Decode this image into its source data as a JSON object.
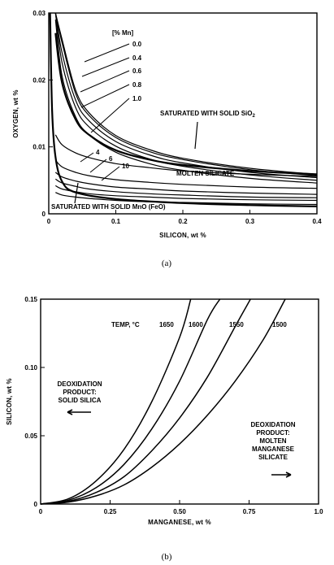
{
  "chart_data": [
    {
      "id": "a",
      "type": "line",
      "caption": "(a)",
      "xlabel": "SILICON, wt %",
      "ylabel": "OXYGEN, wt %",
      "xlim": [
        0,
        0.4
      ],
      "ylim": [
        0,
        0.03
      ],
      "x_ticks": [
        "0",
        "0.1",
        "0.2",
        "0.3",
        "0.4"
      ],
      "y_ticks": [
        "0",
        "0.01",
        "0.02",
        "0.03"
      ],
      "legend_title": "[% Mn]",
      "series": [
        {
          "name": "0.0",
          "group": "sio2",
          "x": [
            0.01,
            0.02,
            0.04,
            0.06,
            0.1,
            0.15,
            0.2,
            0.3,
            0.4
          ],
          "y": [
            0.037,
            0.026,
            0.0185,
            0.0151,
            0.0117,
            0.0096,
            0.0083,
            0.0068,
            0.0059
          ]
        },
        {
          "name": "0.4",
          "group": "sio2",
          "x": [
            0.01,
            0.02,
            0.04,
            0.06,
            0.1,
            0.15,
            0.2,
            0.3,
            0.4
          ],
          "y": [
            0.036,
            0.0255,
            0.018,
            0.0147,
            0.0114,
            0.0093,
            0.0081,
            0.0066,
            0.0057
          ]
        },
        {
          "name": "0.6",
          "group": "sio2",
          "x": [
            0.01,
            0.02,
            0.04,
            0.06,
            0.1,
            0.15,
            0.2,
            0.3,
            0.4
          ],
          "y": [
            0.0345,
            0.024,
            0.017,
            0.0139,
            0.0108,
            0.0088,
            0.0076,
            0.0062,
            0.0054
          ]
        },
        {
          "name": "0.8",
          "group": "sio2",
          "x": [
            0.01,
            0.02,
            0.04,
            0.06,
            0.1,
            0.15,
            0.2,
            0.3,
            0.4
          ],
          "y": [
            0.032,
            0.0225,
            0.0159,
            0.013,
            0.0101,
            0.0082,
            0.0071,
            0.0058,
            0.005
          ]
        },
        {
          "name": "1.0",
          "group": "sio2",
          "x": [
            0.01,
            0.02,
            0.04,
            0.06,
            0.1,
            0.15,
            0.2,
            0.3,
            0.4
          ],
          "y": [
            0.029,
            0.0205,
            0.0145,
            0.0118,
            0.0092,
            0.0075,
            0.0065,
            0.0053,
            0.0046
          ]
        },
        {
          "name": "4",
          "group": "silicate",
          "x": [
            0.01,
            0.02,
            0.04,
            0.06,
            0.1,
            0.15,
            0.2,
            0.3,
            0.4
          ],
          "y": [
            0.0118,
            0.0103,
            0.0091,
            0.0084,
            0.0075,
            0.0069,
            0.0064,
            0.0059,
            0.0056
          ]
        },
        {
          "name": "6",
          "group": "silicate",
          "x": [
            0.01,
            0.02,
            0.04,
            0.06,
            0.1,
            0.15,
            0.2,
            0.3,
            0.4
          ],
          "y": [
            0.008,
            0.007,
            0.0062,
            0.0057,
            0.0051,
            0.0047,
            0.0044,
            0.004,
            0.0038
          ]
        },
        {
          "name": "10",
          "group": "silicate",
          "x": [
            0.01,
            0.02,
            0.04,
            0.06,
            0.1,
            0.15,
            0.2,
            0.3,
            0.4
          ],
          "y": [
            0.0062,
            0.0055,
            0.0049,
            0.0045,
            0.004,
            0.0037,
            0.0034,
            0.0031,
            0.0029
          ]
        },
        {
          "name": "",
          "group": "silicate",
          "x": [
            0.01,
            0.02,
            0.04,
            0.06,
            0.1,
            0.15,
            0.2,
            0.3,
            0.4
          ],
          "y": [
            0.0052,
            0.0046,
            0.0041,
            0.0037,
            0.0033,
            0.003,
            0.0028,
            0.0025,
            0.0024
          ]
        },
        {
          "name": "",
          "group": "silicate",
          "x": [
            0.01,
            0.02,
            0.04,
            0.06,
            0.1,
            0.15,
            0.2,
            0.3,
            0.4
          ],
          "y": [
            0.0042,
            0.0037,
            0.0033,
            0.003,
            0.0027,
            0.0025,
            0.0023,
            0.0021,
            0.002
          ]
        },
        {
          "name": "",
          "group": "silicate",
          "x": [
            0.01,
            0.02,
            0.04,
            0.06,
            0.1,
            0.15,
            0.2,
            0.3,
            0.4
          ],
          "y": [
            0.0032,
            0.0028,
            0.0025,
            0.0023,
            0.002,
            0.0018,
            0.0017,
            0.0015,
            0.0014
          ]
        },
        {
          "name": "",
          "group": "boundary-sio2",
          "x": [
            0.01,
            0.02,
            0.04,
            0.06,
            0.1,
            0.15,
            0.2,
            0.3,
            0.4
          ],
          "y": [
            0.027,
            0.0195,
            0.0141,
            0.0118,
            0.0095,
            0.0081,
            0.0073,
            0.0064,
            0.0059
          ]
        },
        {
          "name": "",
          "group": "boundary-mno",
          "x": [
            0.002,
            0.005,
            0.01,
            0.02,
            0.04,
            0.1,
            0.2,
            0.3,
            0.4
          ],
          "y": [
            0.03,
            0.0155,
            0.0085,
            0.0048,
            0.0032,
            0.0022,
            0.0016,
            0.0013,
            0.0011
          ]
        }
      ],
      "annotations": [
        {
          "text": "SATURATED WITH SOLID SiO",
          "sub": "2",
          "x": 0.185,
          "y": 0.0158
        },
        {
          "text": "MOLTEN SILICATE",
          "x": 0.205,
          "y": 0.0063
        },
        {
          "text": "SATURATED WITH SOLID MnO (FeO)",
          "x": 0.003,
          "y": 0.0031
        }
      ],
      "grid": false
    },
    {
      "id": "b",
      "type": "line",
      "caption": "(b)",
      "xlabel": "MANGANESE, wt %",
      "ylabel": "SILICON, wt %",
      "xlim": [
        0,
        1.0
      ],
      "ylim": [
        0,
        0.15
      ],
      "x_ticks": [
        "0",
        "0.25",
        "0.50",
        "0.75",
        "1.0"
      ],
      "y_ticks": [
        "0",
        "0.05",
        "0.10",
        "0.15"
      ],
      "legend_title": "TEMP, °C",
      "series": [
        {
          "name": "1650",
          "x": [
            0.0,
            0.1,
            0.2,
            0.3,
            0.4,
            0.5,
            0.54
          ],
          "y": [
            0.0,
            0.0038,
            0.017,
            0.04,
            0.075,
            0.122,
            0.15
          ]
        },
        {
          "name": "1600",
          "x": [
            0.0,
            0.1,
            0.2,
            0.3,
            0.4,
            0.5,
            0.6,
            0.645
          ],
          "y": [
            0.0,
            0.0028,
            0.012,
            0.029,
            0.055,
            0.09,
            0.135,
            0.15
          ]
        },
        {
          "name": "1550",
          "x": [
            0.0,
            0.1,
            0.2,
            0.3,
            0.4,
            0.5,
            0.6,
            0.7,
            0.755
          ],
          "y": [
            0.0,
            0.002,
            0.0085,
            0.02,
            0.039,
            0.063,
            0.093,
            0.13,
            0.15
          ]
        },
        {
          "name": "1500",
          "x": [
            0.0,
            0.1,
            0.2,
            0.3,
            0.4,
            0.5,
            0.6,
            0.7,
            0.8,
            0.88
          ],
          "y": [
            0.0,
            0.0014,
            0.006,
            0.014,
            0.027,
            0.044,
            0.065,
            0.09,
            0.12,
            0.15
          ]
        }
      ],
      "annotations": [
        {
          "lines": [
            "DEOXIDATION",
            "PRODUCT:",
            "SOLID SILICA"
          ],
          "x": 0.12,
          "y": 0.098
        },
        {
          "lines": [
            "DEOXIDATION",
            "PRODUCT:",
            "MOLTEN",
            "MANGANESE",
            "SILICATE"
          ],
          "x": 0.83,
          "y": 0.067
        }
      ],
      "grid": false
    }
  ]
}
